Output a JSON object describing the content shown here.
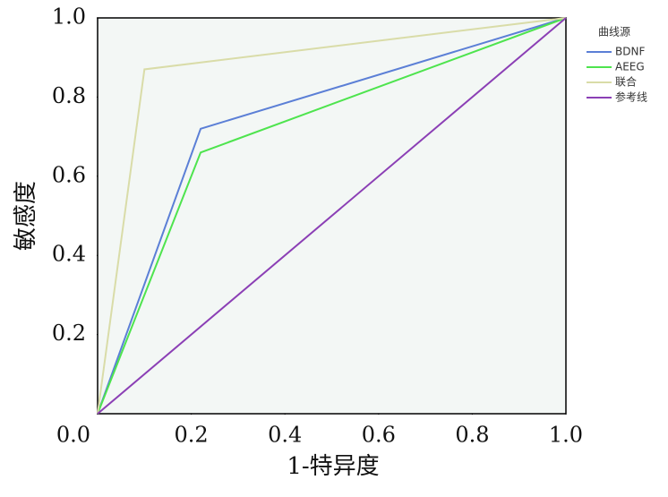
{
  "chart_data": {
    "type": "line",
    "xlabel": "1-特异度",
    "ylabel": "敏感度",
    "legend_title": "曲线源",
    "legend": "right",
    "xlim": [
      0,
      1
    ],
    "ylim": [
      0,
      1
    ],
    "xticks": [
      {
        "value": 0,
        "label": "0.0"
      },
      0.2,
      0.4,
      0.6,
      0.8,
      {
        "value": 1,
        "label": "1.0"
      }
    ],
    "yticks": [
      0.2,
      0.4,
      0.6,
      0.8,
      {
        "value": 1,
        "label": "1.0"
      }
    ],
    "series": [
      {
        "name": "BDNF",
        "color": "#5b7fd6",
        "x": [
          0,
          0.22,
          1
        ],
        "values": [
          0,
          0.72,
          1
        ]
      },
      {
        "name": "AEEG",
        "color": "#4ee44e",
        "x": [
          0,
          0.22,
          1
        ],
        "values": [
          0,
          0.66,
          1
        ]
      },
      {
        "name": "联合",
        "color": "#d9dca8",
        "x": [
          0,
          0.1,
          1
        ],
        "values": [
          0,
          0.87,
          1
        ]
      },
      {
        "name": "参考线",
        "color": "#8b3fb5",
        "x": [
          0,
          1
        ],
        "values": [
          0,
          1
        ]
      }
    ]
  }
}
